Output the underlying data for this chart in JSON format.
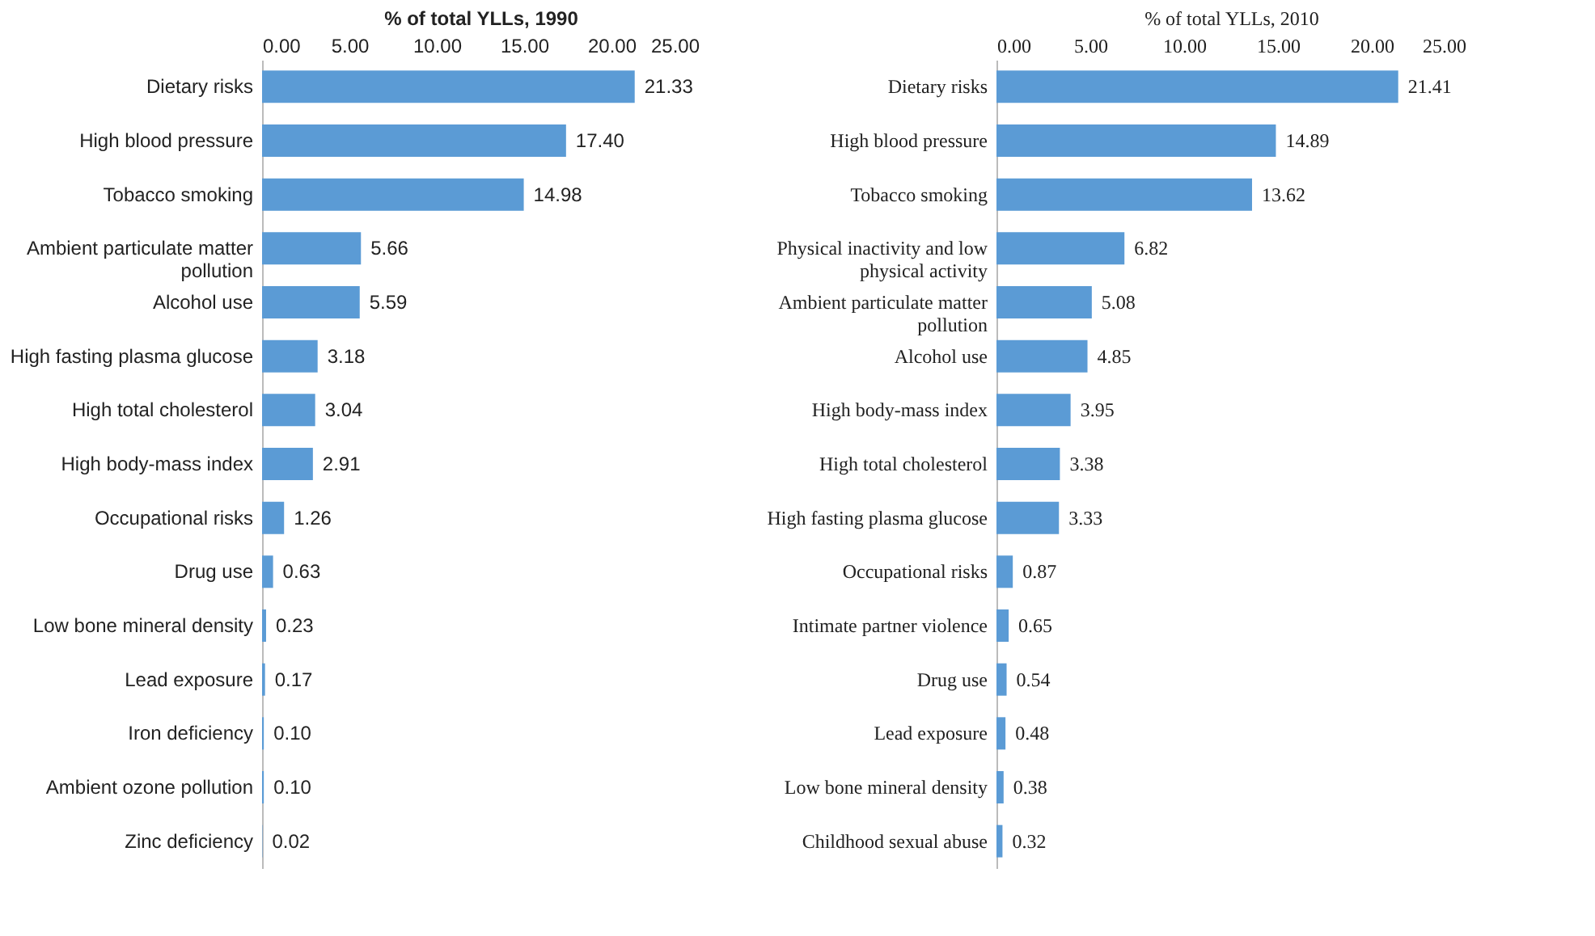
{
  "chart_data": [
    {
      "type": "bar",
      "orientation": "horizontal",
      "xlabel": "% of total YLLs, 1990",
      "categories": [
        "Dietary risks",
        "High blood pressure",
        "Tobacco smoking",
        "Ambient particulate matter pollution",
        "Alcohol use",
        "High fasting plasma glucose",
        "High total cholesterol",
        "High body-mass index",
        "Occupational risks",
        "Drug use",
        "Low bone mineral density",
        "Lead exposure",
        "Iron deficiency",
        "Ambient ozone pollution",
        "Zinc deficiency"
      ],
      "values": [
        21.33,
        17.4,
        14.98,
        5.66,
        5.59,
        3.18,
        3.04,
        2.91,
        1.26,
        0.63,
        0.23,
        0.17,
        0.1,
        0.1,
        0.02
      ],
      "value_labels": [
        "21.33",
        "17.40",
        "14.98",
        "5.66",
        "5.59",
        "3.18",
        "3.04",
        "2.91",
        "1.26",
        "0.63",
        "0.23",
        "0.17",
        "0.10",
        "0.10",
        "0.02"
      ],
      "color": "#5b9bd5",
      "xlim": [
        0,
        25
      ],
      "xticks": [
        {
          "value": 0,
          "label": "0.00"
        },
        {
          "value": 5,
          "label": "5.00"
        },
        {
          "value": 10,
          "label": "10.00"
        },
        {
          "value": 15,
          "label": "15.00"
        },
        {
          "value": 20,
          "label": "20.00"
        },
        {
          "value": 25,
          "label": "25.00"
        }
      ],
      "grid": false
    },
    {
      "type": "bar",
      "orientation": "horizontal",
      "xlabel": "% of total YLLs, 2010",
      "categories": [
        "Dietary risks",
        "High blood pressure",
        "Tobacco smoking",
        "Physical inactivity and low physical activity",
        "Ambient particulate matter pollution",
        "Alcohol use",
        "High body-mass index",
        "High total cholesterol",
        "High fasting plasma glucose",
        "Occupational risks",
        "Intimate partner violence",
        "Drug use",
        "Lead exposure",
        "Low bone mineral density",
        "Childhood sexual abuse"
      ],
      "values": [
        21.41,
        14.89,
        13.62,
        6.82,
        5.08,
        4.85,
        3.95,
        3.38,
        3.33,
        0.87,
        0.65,
        0.54,
        0.48,
        0.38,
        0.32
      ],
      "value_labels": [
        "21.41",
        "14.89",
        "13.62",
        "6.82",
        "5.08",
        "4.85",
        "3.95",
        "3.38",
        "3.33",
        "0.87",
        "0.65",
        "0.54",
        "0.48",
        "0.38",
        "0.32"
      ],
      "color": "#5b9bd5",
      "xlim": [
        0,
        25
      ],
      "xticks": [
        {
          "value": 0,
          "label": "0.00"
        },
        {
          "value": 5,
          "label": "5.00"
        },
        {
          "value": 10,
          "label": "10.00"
        },
        {
          "value": 15,
          "label": "15.00"
        },
        {
          "value": 20,
          "label": "20.00"
        },
        {
          "value": 25,
          "label": "25.00"
        }
      ],
      "grid": false
    }
  ]
}
